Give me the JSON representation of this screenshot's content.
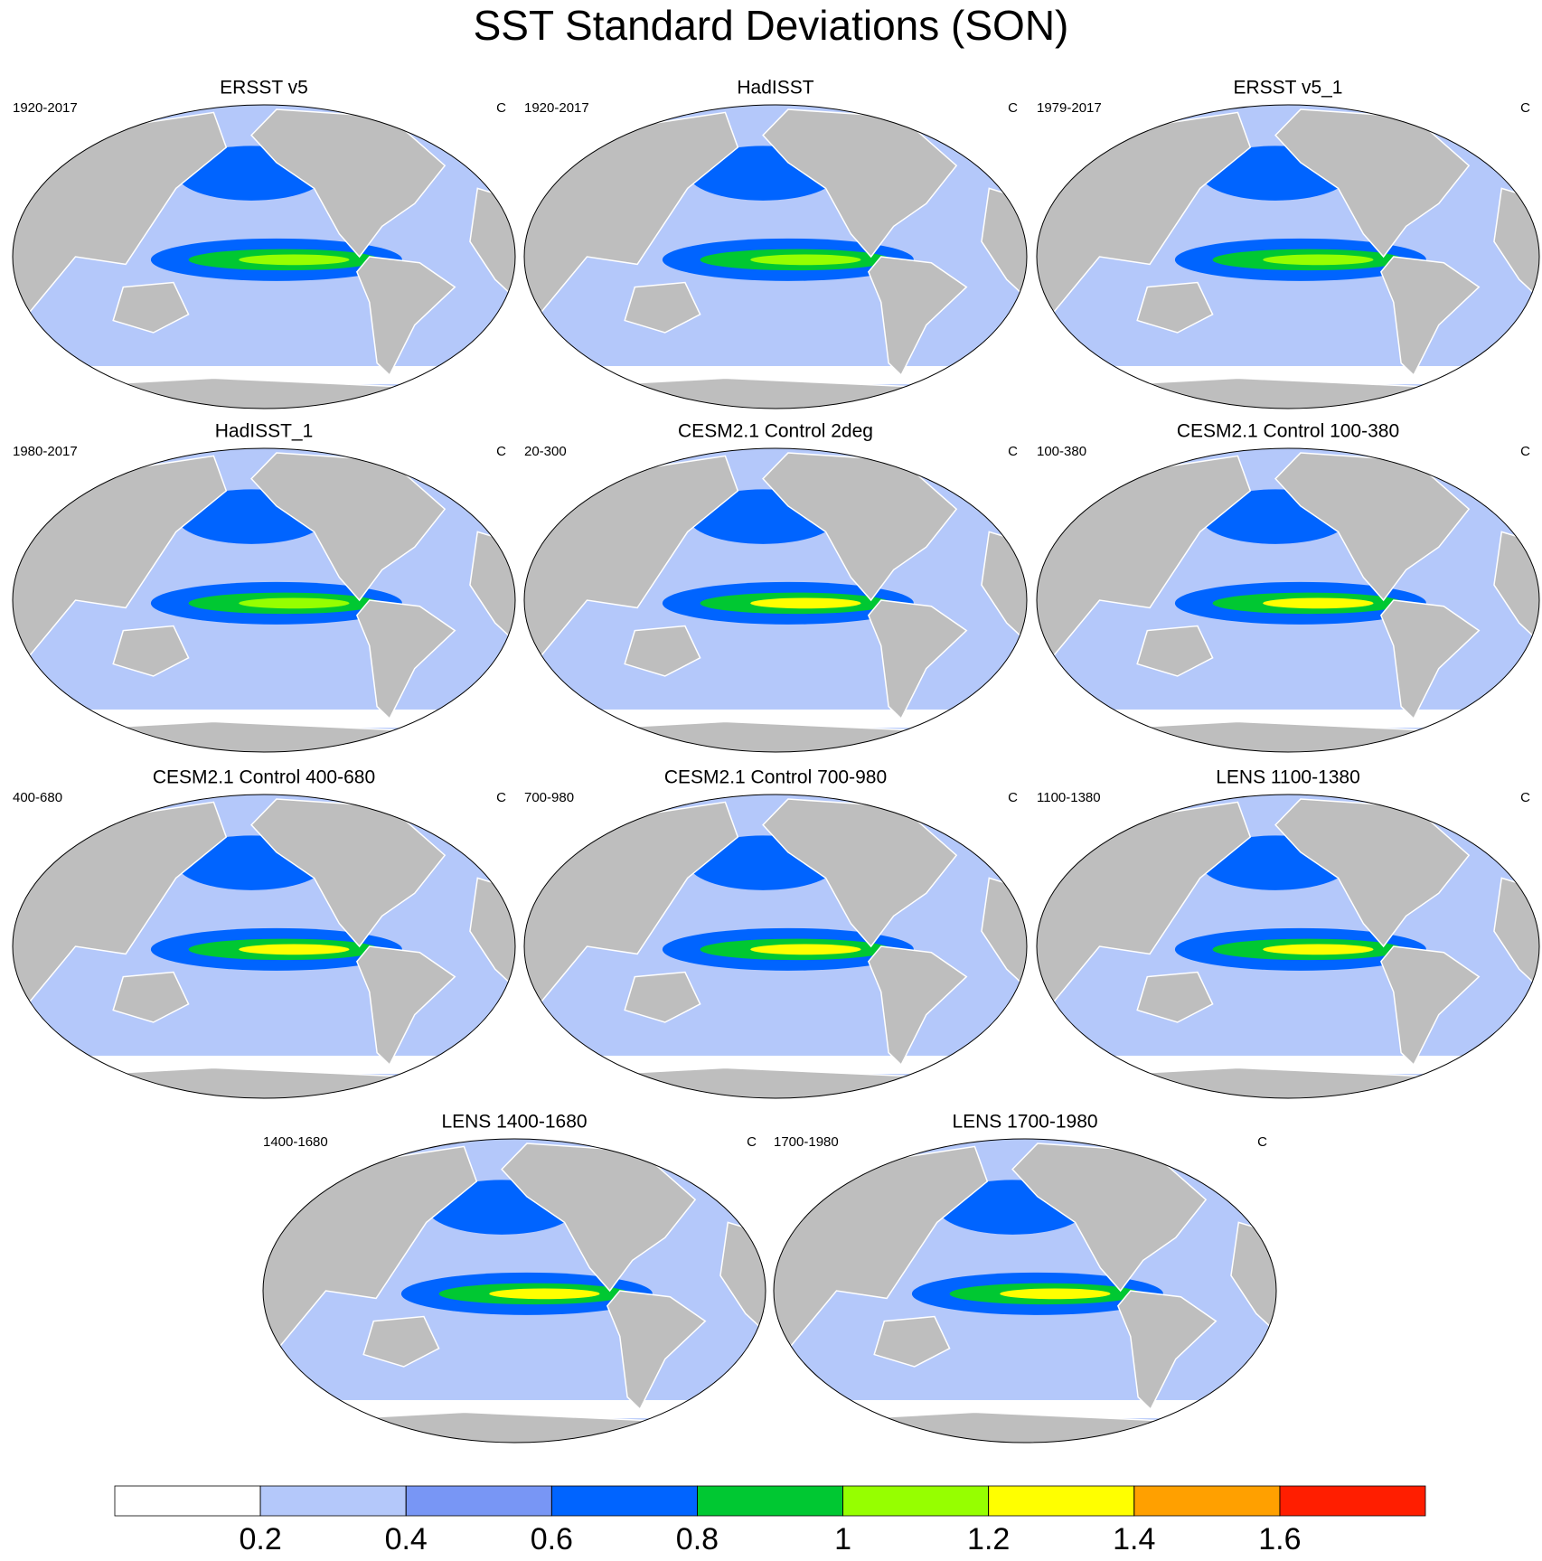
{
  "title": "SST Standard Deviations (SON)",
  "panels": [
    {
      "title": "ERSST v5",
      "left": "1920-2017",
      "right": "C"
    },
    {
      "title": "HadISST",
      "left": "1920-2017",
      "right": "C"
    },
    {
      "title": "ERSST v5_1",
      "left": "1979-2017",
      "right": "C"
    },
    {
      "title": "HadISST_1",
      "left": "1980-2017",
      "right": "C"
    },
    {
      "title": "CESM2.1 Control 2deg",
      "left": "20-300",
      "right": "C"
    },
    {
      "title": "CESM2.1 Control 100-380",
      "left": "100-380",
      "right": "C"
    },
    {
      "title": "CESM2.1 Control 400-680",
      "left": "400-680",
      "right": "C"
    },
    {
      "title": "CESM2.1 Control 700-980",
      "left": "700-980",
      "right": "C"
    },
    {
      "title": "LENS 1100-1380",
      "left": "1100-1380",
      "right": "C"
    },
    {
      "title": "LENS 1400-1680",
      "left": "1400-1680",
      "right": "C"
    },
    {
      "title": "LENS 1700-1980",
      "left": "1700-1980",
      "right": "C"
    }
  ],
  "colorbar": {
    "colors": [
      "#ffffff",
      "#b4c8fa",
      "#7896f5",
      "#0064ff",
      "#00c832",
      "#96ff00",
      "#ffff00",
      "#ffa000",
      "#ff1e00"
    ],
    "ticks": [
      0.2,
      0.4,
      0.6,
      0.8,
      1,
      1.2,
      1.4,
      1.6
    ]
  }
}
